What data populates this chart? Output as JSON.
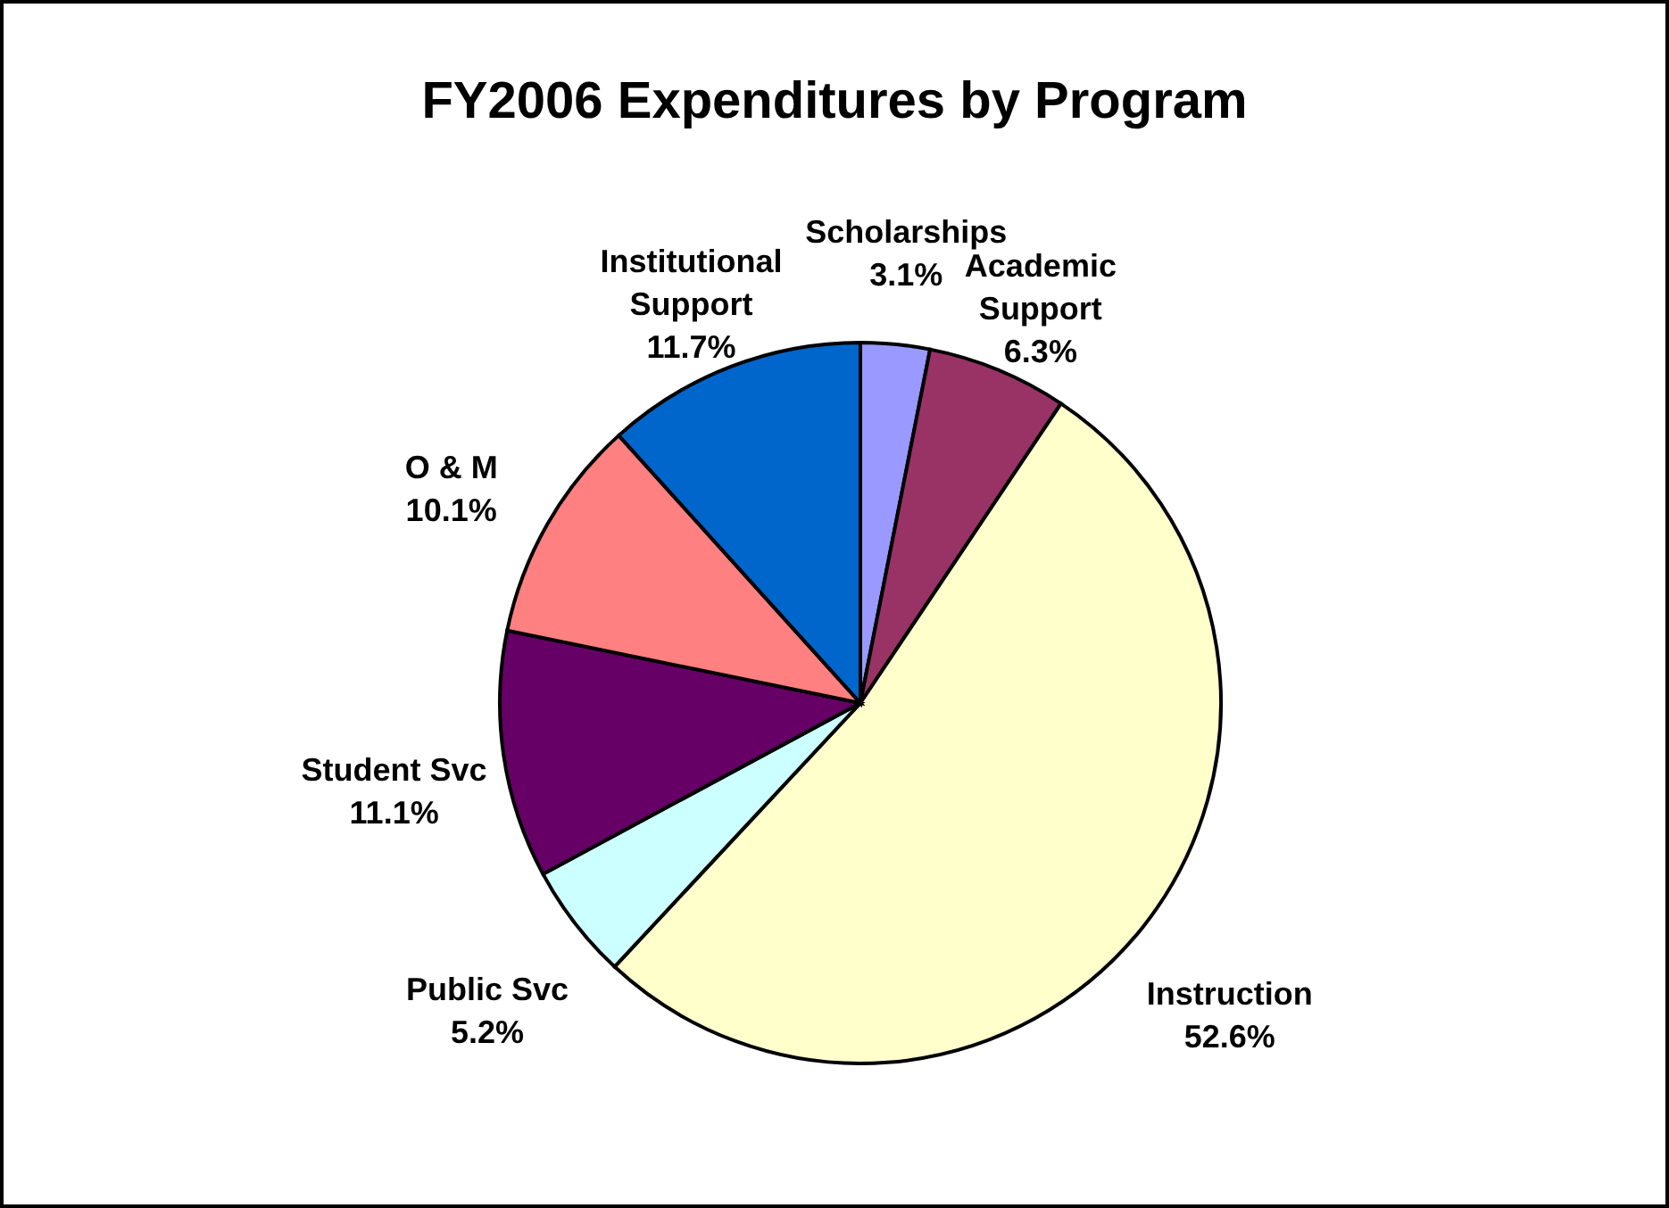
{
  "chart_data": {
    "type": "pie",
    "title": "FY2006 Expenditures by Program",
    "categories": [
      "Scholarships",
      "Academic Support",
      "Instruction",
      "Public Svc",
      "Student Svc",
      "O & M",
      "Institutional Support"
    ],
    "values": [
      3.1,
      6.3,
      52.6,
      5.2,
      11.1,
      10.1,
      11.7
    ],
    "colors": [
      "#9999ff",
      "#993366",
      "#ffffcc",
      "#ccffff",
      "#660066",
      "#ff8080",
      "#0066cc"
    ],
    "value_labels": [
      "3.1%",
      "6.3%",
      "52.6%",
      "5.2%",
      "11.1%",
      "10.1%",
      "11.7%"
    ],
    "data_labels": true,
    "legend": false
  }
}
